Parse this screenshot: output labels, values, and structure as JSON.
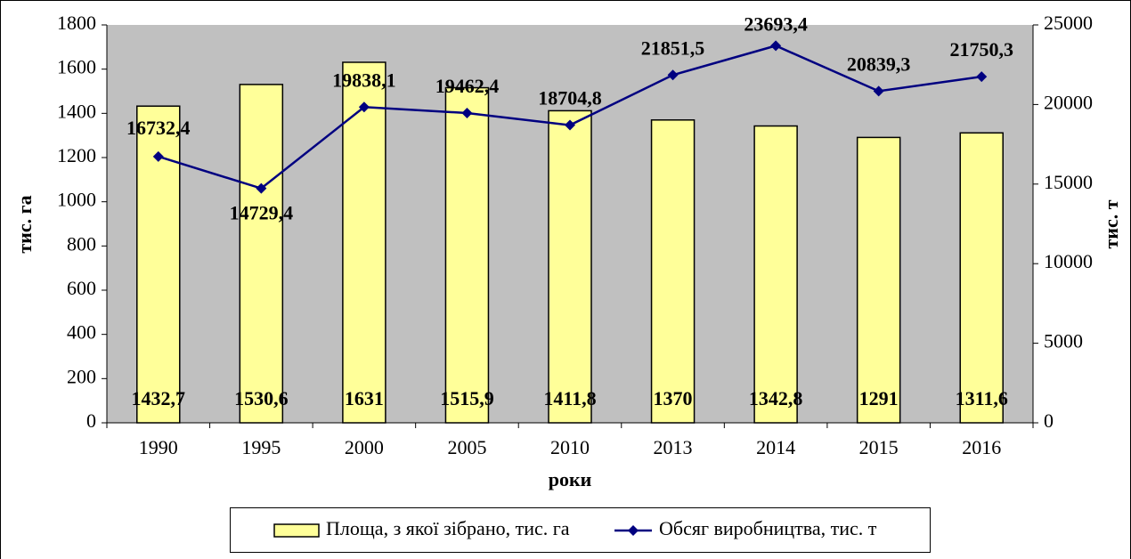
{
  "chart_data": {
    "type": "bar",
    "x_label": "роки",
    "y_label": "тис. га",
    "y2_label": "тис. т",
    "categories": [
      "1990",
      "1995",
      "2000",
      "2005",
      "2010",
      "2013",
      "2014",
      "2015",
      "2016"
    ],
    "series": [
      {
        "name": "Площа, з якої зібрано, тис. га",
        "type": "bar",
        "color": "#ffff99",
        "values": [
          1432.7,
          1530.6,
          1631,
          1515.9,
          1411.8,
          1370,
          1342.8,
          1291,
          1311.6
        ],
        "value_labels": [
          "1432,7",
          "1530,6",
          "1631",
          "1515,9",
          "1411,8",
          "1370",
          "1342,8",
          "1291",
          "1311,6"
        ]
      },
      {
        "name": "Обсяг виробництва, тис. т",
        "type": "line",
        "axis": "y2",
        "color": "#000080",
        "values": [
          16732.4,
          14729.4,
          19838.1,
          19462.4,
          18704.8,
          21851.5,
          23693.4,
          20839.3,
          21750.3
        ],
        "value_labels": [
          "16732,4",
          "14729,4",
          "19838,1",
          "19462,4",
          "18704,8",
          "21851,5",
          "23693,4",
          "20839,3",
          "21750,3"
        ]
      }
    ],
    "ylim": [
      0,
      1800
    ],
    "yticks": [
      0,
      200,
      400,
      600,
      800,
      1000,
      1200,
      1400,
      1600,
      1800
    ],
    "y2lim": [
      0,
      25000
    ],
    "y2ticks": [
      0,
      5000,
      10000,
      15000,
      20000,
      25000
    ],
    "plot_background": "#c0c0c0"
  }
}
